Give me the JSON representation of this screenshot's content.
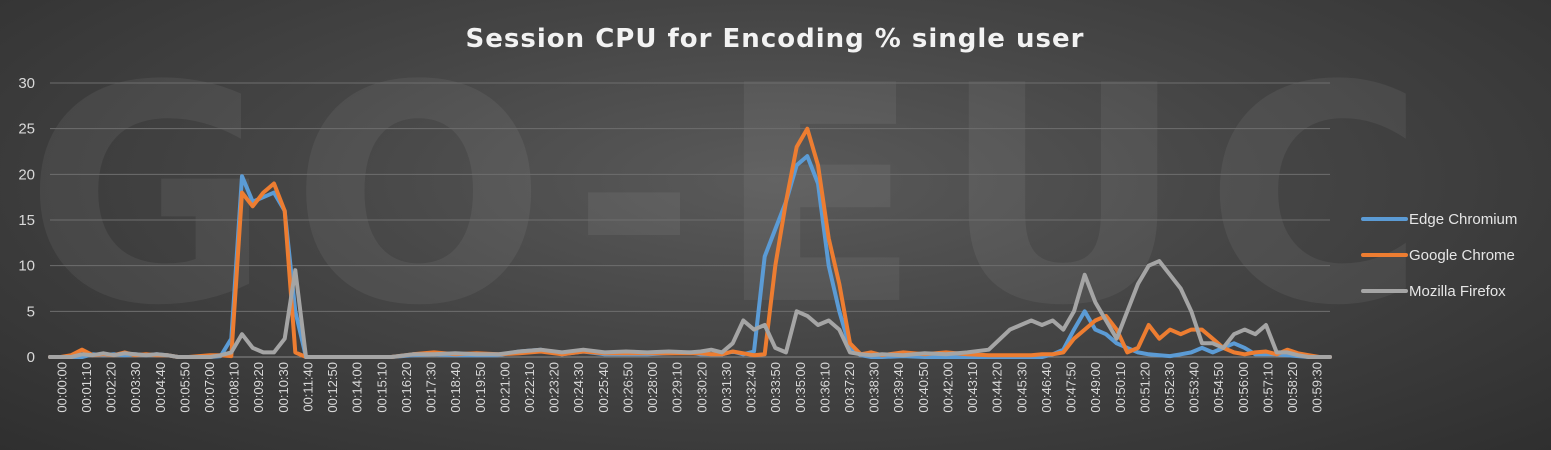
{
  "chart_data": {
    "type": "line",
    "title": "Session CPU for Encoding % single user",
    "watermark": "GO-EUC",
    "xlabel": "",
    "ylabel": "",
    "ylim": [
      0,
      30
    ],
    "yticks": [
      0,
      5,
      10,
      15,
      20,
      25,
      30
    ],
    "grid": true,
    "legend_position": "right",
    "x_tick_labels": [
      "00:00:00",
      "00:01:10",
      "00:02:20",
      "00:03:30",
      "00:04:40",
      "00:05:50",
      "00:07:00",
      "00:08:10",
      "00:09:20",
      "00:10:30",
      "00:11:40",
      "00:12:50",
      "00:14:00",
      "00:15:10",
      "00:16:20",
      "00:17:30",
      "00:18:40",
      "00:19:50",
      "00:21:00",
      "00:22:10",
      "00:23:20",
      "00:24:30",
      "00:25:40",
      "00:26:50",
      "00:28:00",
      "00:29:10",
      "00:30:20",
      "00:31:30",
      "00:32:40",
      "00:33:50",
      "00:35:00",
      "00:36:10",
      "00:37:20",
      "00:38:30",
      "00:39:40",
      "00:40:50",
      "00:42:00",
      "00:43:10",
      "00:44:20",
      "00:45:30",
      "00:46:40",
      "00:47:50",
      "00:49:00",
      "00:50:10",
      "00:51:20",
      "00:52:30",
      "00:53:40",
      "00:54:50",
      "00:56:00",
      "00:57:10",
      "00:58:20",
      "00:59:30"
    ],
    "x_minutes": [
      0,
      0.5,
      1,
      1.5,
      2,
      2.5,
      3,
      3.5,
      4,
      4.5,
      5,
      5.5,
      6,
      6.5,
      7,
      7.5,
      8,
      8.5,
      9,
      9.5,
      10,
      10.5,
      11,
      11.5,
      12,
      13,
      14,
      15,
      16,
      17,
      18,
      19,
      20,
      21,
      22,
      23,
      24,
      25,
      26,
      27,
      28,
      29,
      30,
      30.5,
      31,
      31.5,
      32,
      32.5,
      33,
      33.5,
      34,
      34.5,
      35,
      35.5,
      36,
      36.5,
      37,
      37.5,
      38,
      38.5,
      39,
      40,
      41,
      42,
      43,
      44,
      45,
      45.5,
      46,
      46.5,
      47,
      47.5,
      48,
      48.5,
      49,
      49.5,
      50,
      50.5,
      51,
      51.5,
      52,
      52.5,
      53,
      53.5,
      54,
      54.5,
      55,
      55.5,
      56,
      56.5,
      57,
      57.5,
      58,
      58.5,
      59,
      59.5,
      60
    ],
    "series": [
      {
        "name": "Edge Chromium",
        "color": "#5b9bd5",
        "values": [
          0,
          0,
          0,
          0,
          0.3,
          0.2,
          0.3,
          0.2,
          0.3,
          0.2,
          0.3,
          0.2,
          0,
          0,
          0,
          0,
          0.1,
          2,
          19.8,
          17,
          17.5,
          18,
          16,
          5,
          0,
          0,
          0,
          0,
          0,
          0.2,
          0.3,
          0.2,
          0.2,
          0.2,
          0.6,
          0.8,
          0.3,
          0.6,
          0.3,
          0.3,
          0.3,
          0.4,
          0.5,
          0.3,
          0.3,
          0.3,
          0.6,
          0.3,
          0.6,
          11,
          14,
          17,
          21,
          22,
          19,
          10,
          5,
          1,
          0.2,
          0,
          0,
          0.1,
          0,
          0,
          0,
          0,
          0,
          0,
          0,
          0,
          0.3,
          0.8,
          3,
          5,
          3,
          2.5,
          1.5,
          1,
          0.5,
          0.3,
          0.2,
          0.1,
          0.3,
          0.5,
          1,
          0.5,
          1,
          1.5,
          1,
          0.3,
          0.3,
          0.3,
          0.2,
          0.1,
          0,
          0,
          0
        ]
      },
      {
        "name": "Google Chrome",
        "color": "#ed7d31",
        "values": [
          0,
          0,
          0.2,
          0.8,
          0.2,
          0.3,
          0.2,
          0.5,
          0.2,
          0.3,
          0.2,
          0.2,
          0,
          0,
          0.1,
          0.2,
          0.2,
          0.1,
          18,
          16.5,
          18,
          19,
          16,
          0.5,
          0,
          0,
          0,
          0,
          0,
          0.3,
          0.5,
          0.3,
          0.4,
          0.3,
          0.4,
          0.6,
          0.3,
          0.6,
          0.4,
          0.4,
          0.4,
          0.4,
          0.4,
          0.4,
          0.3,
          0.3,
          0.6,
          0.4,
          0.2,
          0.3,
          10,
          17,
          23,
          25,
          21,
          13,
          8,
          1.5,
          0.3,
          0.5,
          0.2,
          0.5,
          0.3,
          0.5,
          0.3,
          0.2,
          0.2,
          0.2,
          0.2,
          0.3,
          0.3,
          0.5,
          2,
          3,
          4,
          4.5,
          3,
          0.5,
          1,
          3.5,
          2,
          3,
          2.5,
          3,
          3,
          2,
          1,
          0.5,
          0.3,
          0.5,
          0.6,
          0.3,
          0.8,
          0.4,
          0.2,
          0,
          0
        ]
      },
      {
        "name": "Mozilla Firefox",
        "color": "#a5a5a5",
        "values": [
          0,
          0,
          0,
          0.3,
          0.2,
          0.4,
          0.2,
          0.4,
          0.3,
          0.2,
          0.3,
          0.2,
          0,
          0,
          0,
          0,
          0.2,
          0.5,
          2.5,
          1,
          0.5,
          0.5,
          2,
          9.5,
          0,
          0,
          0,
          0,
          0,
          0.3,
          0.3,
          0.4,
          0.3,
          0.3,
          0.6,
          0.8,
          0.5,
          0.8,
          0.5,
          0.6,
          0.5,
          0.6,
          0.5,
          0.6,
          0.8,
          0.5,
          1.5,
          4,
          3,
          3.5,
          1,
          0.5,
          5,
          4.5,
          3.5,
          4,
          3,
          0.5,
          0.3,
          0.2,
          0.3,
          0.2,
          0.4,
          0.3,
          0.5,
          0.8,
          3,
          3.5,
          4,
          3.5,
          4,
          3,
          5,
          9,
          6,
          4,
          2,
          5,
          8,
          10,
          10.5,
          9,
          7.5,
          5,
          1.5,
          1.5,
          1,
          2.5,
          3,
          2.5,
          3.5,
          0.5,
          0.5,
          0.2,
          0,
          0,
          0
        ]
      }
    ]
  }
}
